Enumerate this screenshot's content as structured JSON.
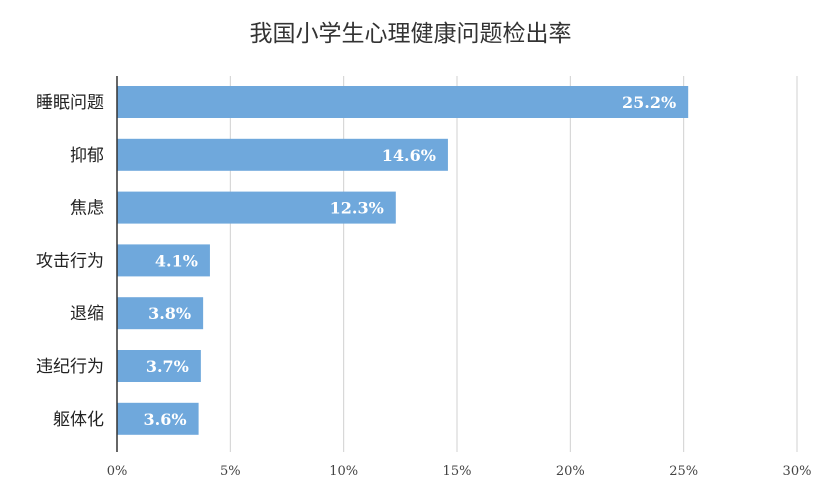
{
  "chart_data": {
    "type": "bar",
    "orientation": "horizontal",
    "title": "我国小学生心理健康问题检出率",
    "xlabel": "",
    "ylabel": "",
    "categories": [
      "睡眠问题",
      "抑郁",
      "焦虑",
      "攻击行为",
      "退缩",
      "违纪行为",
      "躯体化"
    ],
    "values": [
      25.2,
      14.6,
      12.3,
      4.1,
      3.8,
      3.7,
      3.6
    ],
    "value_labels": [
      "25.2%",
      "14.6%",
      "12.3%",
      "4.1%",
      "3.8%",
      "3.7%",
      "3.6%"
    ],
    "x_ticks": [
      0,
      5,
      10,
      15,
      20,
      25,
      30
    ],
    "x_tick_labels": [
      "0%",
      "5%",
      "10%",
      "15%",
      "20%",
      "25%",
      "30%"
    ],
    "xlim": [
      0,
      30
    ],
    "grid": true,
    "legend": "none",
    "bar_color": "#6fa8dc",
    "grid_color": "#d0d0d0"
  }
}
